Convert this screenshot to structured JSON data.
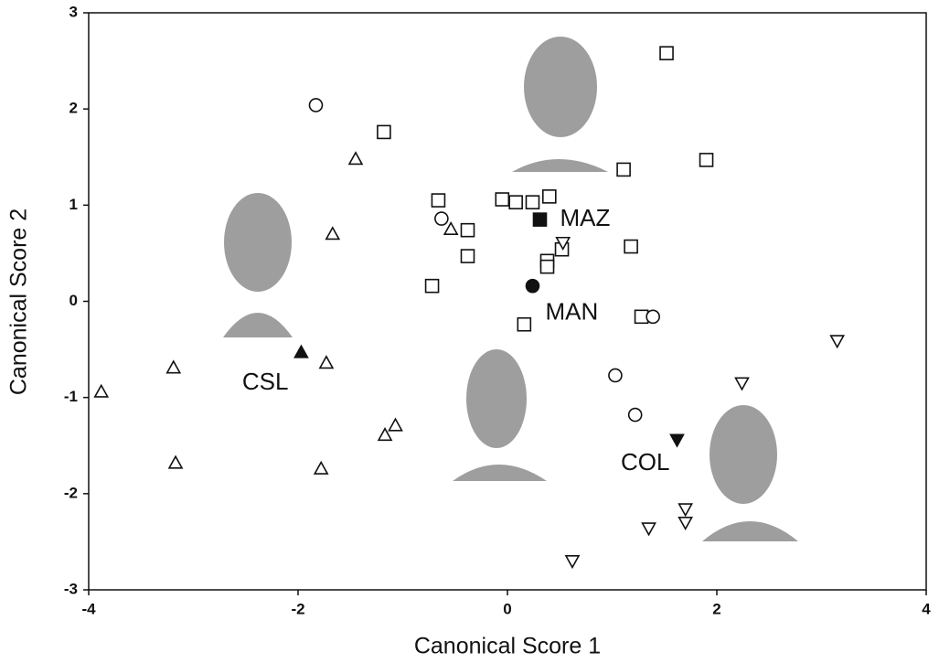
{
  "chart_data": {
    "type": "scatter",
    "xlabel": "Canonical Score 1",
    "ylabel": "Canonical Score 2",
    "xlim": [
      -4,
      4
    ],
    "ylim": [
      -3,
      3
    ],
    "xticks": [
      -4,
      -2,
      0,
      2,
      4
    ],
    "yticks": [
      -3,
      -2,
      -1,
      0,
      1,
      2,
      3
    ],
    "grid": false,
    "color": "#111111",
    "series": [
      {
        "marker": "square",
        "x": [
          1.52,
          -1.18,
          1.11,
          1.9,
          -0.66,
          -0.05,
          0.08,
          0.24,
          0.4,
          -0.38,
          -0.38,
          0.52,
          0.38,
          0.38,
          1.18,
          -0.72,
          0.16,
          1.28
        ],
        "values": [
          2.58,
          1.76,
          1.37,
          1.47,
          1.05,
          1.06,
          1.03,
          1.03,
          1.09,
          0.74,
          0.47,
          0.54,
          0.42,
          0.36,
          0.57,
          0.16,
          -0.24,
          -0.16
        ]
      },
      {
        "marker": "circle",
        "x": [
          -1.83,
          -0.63,
          1.39,
          1.03,
          1.22
        ],
        "values": [
          2.04,
          0.86,
          -0.16,
          -0.77,
          -1.18
        ]
      },
      {
        "marker": "triangle-up",
        "x": [
          -1.45,
          -1.67,
          -0.54,
          -3.88,
          -3.19,
          -3.17,
          -1.73,
          -1.07,
          -1.17,
          -1.78
        ],
        "values": [
          1.48,
          0.7,
          0.75,
          -0.94,
          -0.69,
          -1.68,
          -0.64,
          -1.29,
          -1.39,
          -1.74
        ]
      },
      {
        "marker": "triangle-down",
        "x": [
          0.53,
          3.15,
          2.24,
          1.7,
          1.7,
          1.35,
          0.62
        ],
        "values": [
          0.61,
          -0.41,
          -0.85,
          -2.16,
          -2.3,
          -2.36,
          -2.7
        ]
      }
    ],
    "centroids": {
      "labels": [
        "MAZ",
        "MAN",
        "CSL",
        "COL"
      ],
      "markers": [
        "square",
        "circle",
        "triangle-up",
        "triangle-down"
      ],
      "x": [
        0.31,
        0.24,
        -1.97,
        1.62
      ],
      "values": [
        0.85,
        0.16,
        -0.53,
        -1.44
      ]
    }
  }
}
